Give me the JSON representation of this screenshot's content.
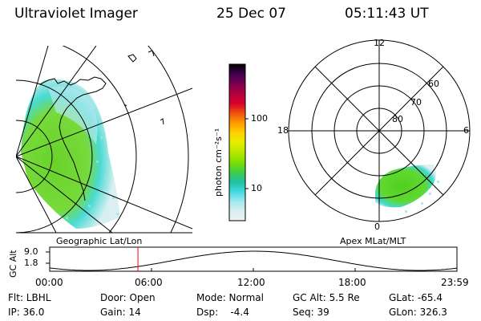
{
  "header": {
    "instrument": "Ultraviolet Imager",
    "date": "25 Dec 07",
    "time": "05:11:43 UT"
  },
  "map_left": {
    "label": "Geographic Lat/Lon"
  },
  "colorbar": {
    "unit_label": "photon cm⁻²s⁻¹",
    "ticks": [
      "100",
      "10"
    ],
    "colors": [
      "#000000",
      "#400050",
      "#7a0050",
      "#b00040",
      "#d8002a",
      "#f05010",
      "#ff9a00",
      "#ffd000",
      "#e8ee00",
      "#b8e800",
      "#80e000",
      "#40d040",
      "#20c0a0",
      "#40d8e0",
      "#a0e8f0",
      "#d8eef0",
      "#f0f0f0"
    ]
  },
  "polar": {
    "label": "Apex MLat/MLT",
    "mlt_labels": [
      "12",
      "18",
      "6",
      "0"
    ],
    "lat_labels": [
      "60",
      "70",
      "80"
    ]
  },
  "altitude_plot": {
    "axis_label": "GC Alt",
    "y_ticks": [
      "9.0",
      "1.8"
    ],
    "x_ticks": [
      "00:00",
      "06:00",
      "12:00",
      "18:00",
      "23:59"
    ],
    "marker_time_hours": 5.2,
    "marker_color": "#ff0000"
  },
  "info": {
    "flt": "Flt: LBHL",
    "door": "Door: Open",
    "mode": "Mode: Normal",
    "gcalt": "GC Alt: 5.5 Re",
    "glat": "GLat: -65.4",
    "ip": "IP: 36.0",
    "gain": "Gain: 14",
    "dsp": "Dsp:    -4.4",
    "seq": "Seq: 39",
    "glon": "GLon: 326.3"
  }
}
